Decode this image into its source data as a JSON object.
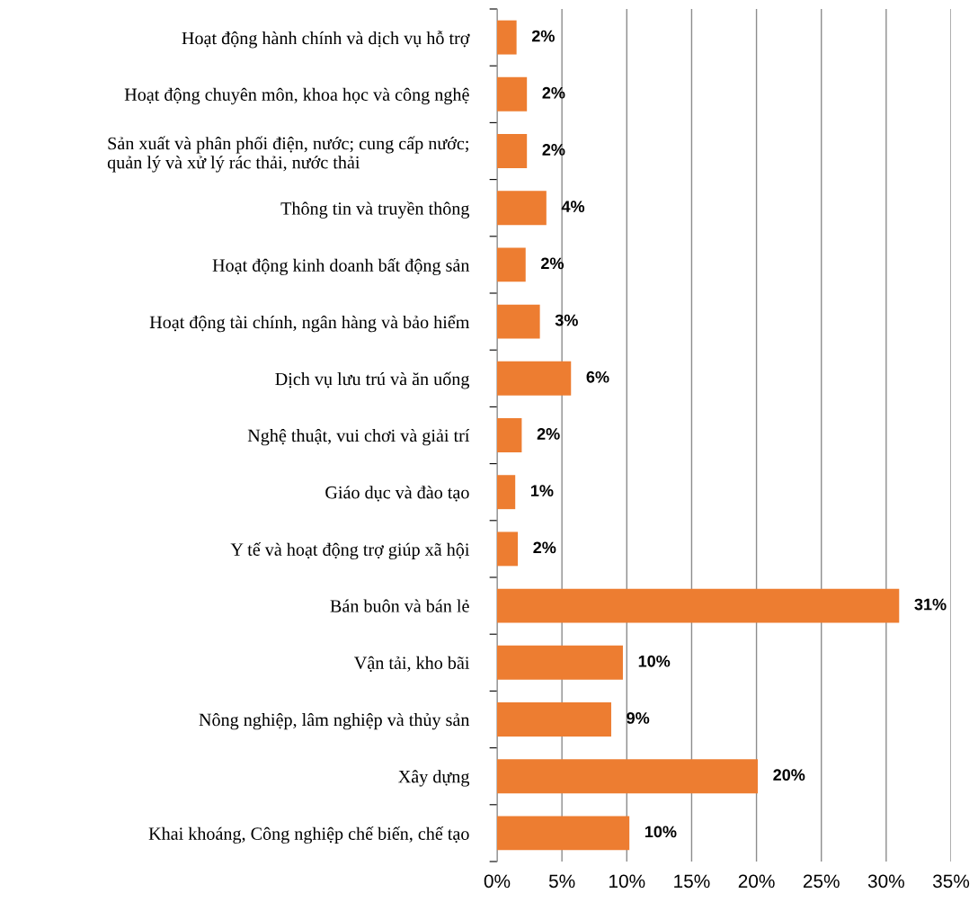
{
  "chart_data": {
    "type": "bar",
    "orientation": "horizontal",
    "categories": [
      "Hoạt động hành chính và dịch vụ hỗ trợ",
      "Hoạt động chuyên môn, khoa học và công nghệ",
      "Sản xuất và phân phối điện, nước; cung cấp nước;\nquản lý và xử lý rác thải, nước thải",
      "Thông tin và truyền thông",
      "Hoạt động kinh doanh bất động sản",
      "Hoạt động tài chính, ngân hàng và bảo hiểm",
      "Dịch vụ lưu trú và ăn uống",
      "Nghệ thuật, vui chơi và giải trí",
      "Giáo dục và đào tạo",
      "Y tế và hoạt động trợ giúp xã hội",
      "Bán buôn và bán lẻ",
      "Vận tải, kho bãi",
      "Nông nghiệp, lâm nghiệp và thủy sản",
      "Xây dựng",
      "Khai khoáng, Công nghiệp chế biến, chế tạo"
    ],
    "values": [
      1.5,
      2.3,
      2.3,
      3.8,
      2.2,
      3.3,
      5.7,
      1.9,
      1.4,
      1.6,
      31.0,
      9.7,
      8.8,
      20.1,
      10.2
    ],
    "value_labels": [
      "2%",
      "2%",
      "2%",
      "4%",
      "2%",
      "3%",
      "6%",
      "2%",
      "1%",
      "2%",
      "31%",
      "10%",
      "9%",
      "20%",
      "10%"
    ],
    "color": "#ed7d31",
    "xlim": [
      0,
      35
    ],
    "xticks": [
      {
        "value": 0,
        "label": "0%"
      },
      {
        "value": 5,
        "label": "5%"
      },
      {
        "value": 10,
        "label": "10%"
      },
      {
        "value": 15,
        "label": "15%"
      },
      {
        "value": 20,
        "label": "20%"
      },
      {
        "value": 25,
        "label": "25%"
      },
      {
        "value": 30,
        "label": "30%"
      },
      {
        "value": 35,
        "label": "35%"
      }
    ],
    "grid": "x",
    "legend": false
  }
}
